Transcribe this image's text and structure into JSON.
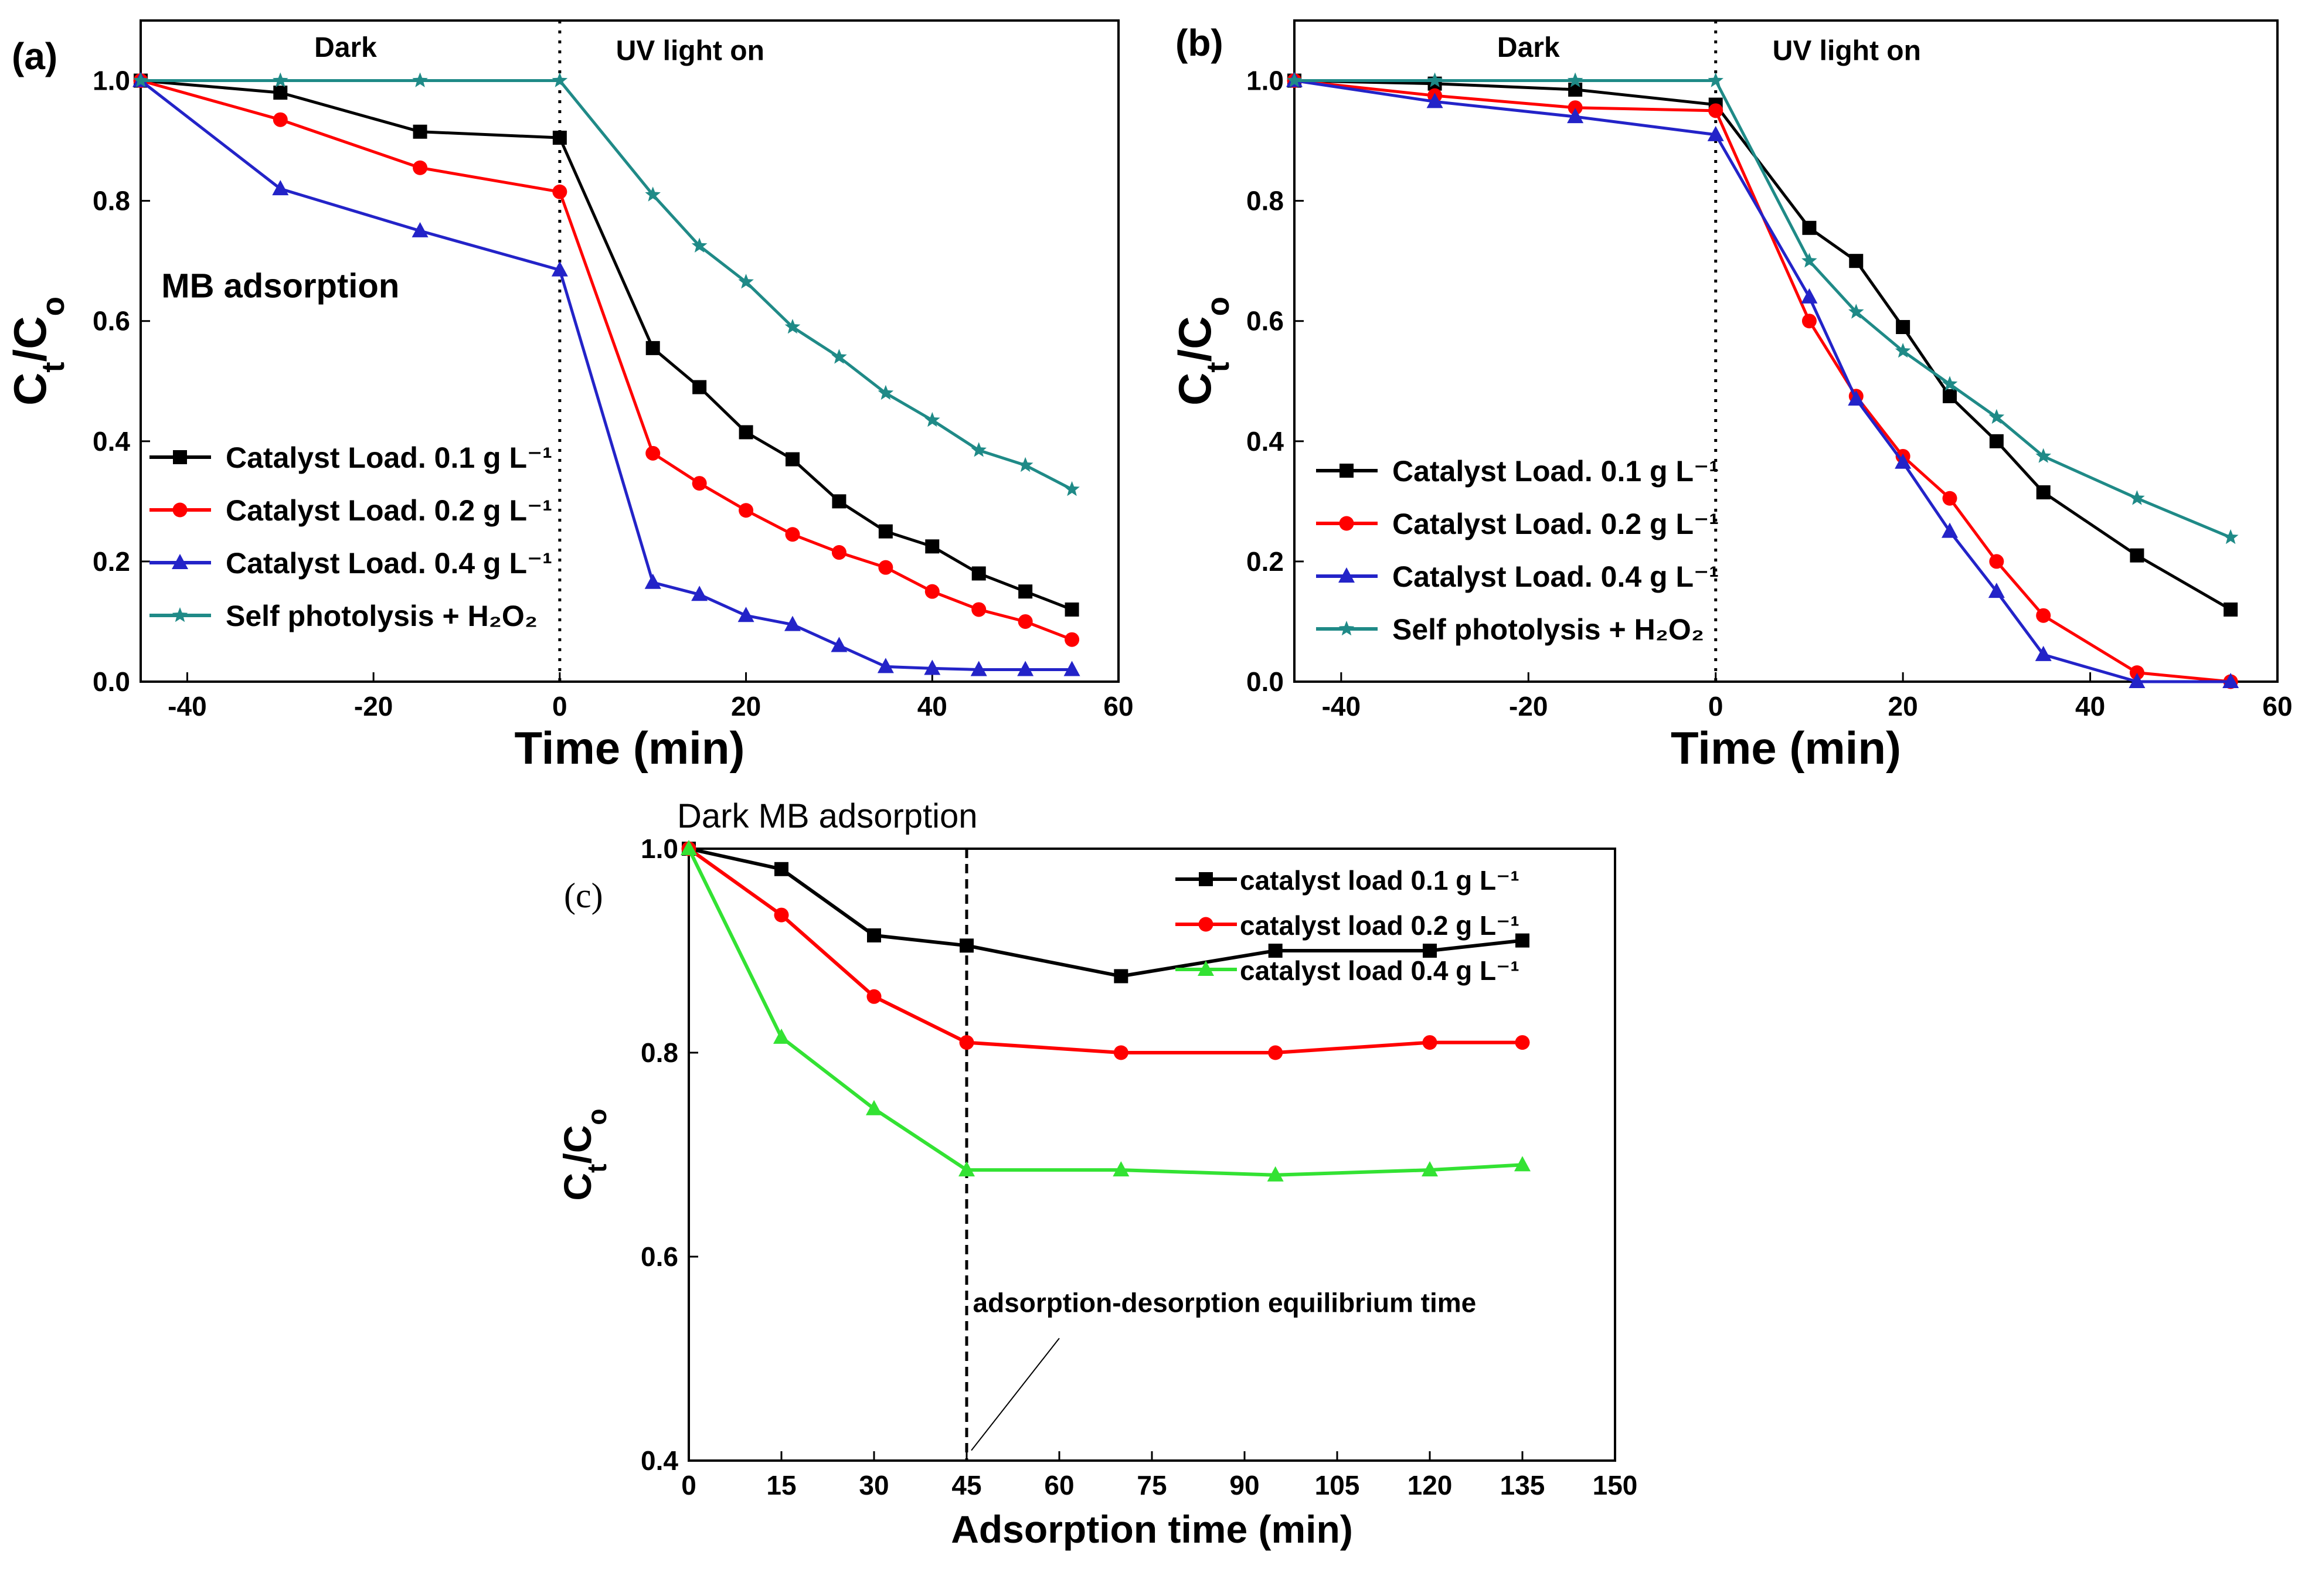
{
  "colors": {
    "black": "#000000",
    "red": "#ff0000",
    "blue": "#2323c8",
    "teal": "#1f8a87",
    "green": "#33e233"
  },
  "chart_data": [
    {
      "id": "a",
      "type": "line",
      "panel_label": "(a)",
      "xlabel": "Time (min)",
      "ylabel": "Ct/Co",
      "ylabel_main": "C",
      "ylabel_sub1": "t",
      "ylabel_mid": "/C",
      "ylabel_sub2": "o",
      "xlim": [
        -45,
        60
      ],
      "ylim": [
        0,
        1.1
      ],
      "xticks": [
        -40,
        -20,
        0,
        20,
        40,
        60
      ],
      "xtick_labels": [
        "-40",
        "-20",
        "0",
        "20",
        "40",
        "60"
      ],
      "yticks": [
        0,
        0.2,
        0.4,
        0.6,
        0.8,
        1.0
      ],
      "ytick_labels": [
        "0.0",
        "0.2",
        "0.4",
        "0.6",
        "0.8",
        "1.0"
      ],
      "divider_x": 0,
      "annotations": [
        {
          "text": "Dark",
          "x": -23,
          "y": 1.055
        },
        {
          "text": "UV light on",
          "x": 14,
          "y": 1.05
        },
        {
          "text": "MB adsorption",
          "x": -30,
          "y": 0.655
        }
      ],
      "legend_position": "lower-left",
      "series": [
        {
          "name": "Catalyst Load. 0.1 g L⁻¹",
          "color": "black",
          "marker": "square",
          "x": [
            -45,
            -30,
            -15,
            0,
            10,
            15,
            20,
            25,
            30,
            35,
            40,
            45,
            50,
            55
          ],
          "y": [
            1.0,
            0.98,
            0.915,
            0.905,
            0.555,
            0.49,
            0.415,
            0.37,
            0.3,
            0.25,
            0.225,
            0.18,
            0.15,
            0.12
          ]
        },
        {
          "name": "Catalyst Load. 0.2 g L⁻¹",
          "color": "red",
          "marker": "circle",
          "x": [
            -45,
            -30,
            -15,
            0,
            10,
            15,
            20,
            25,
            30,
            35,
            40,
            45,
            50,
            55
          ],
          "y": [
            1.0,
            0.935,
            0.855,
            0.815,
            0.38,
            0.33,
            0.285,
            0.245,
            0.215,
            0.19,
            0.15,
            0.12,
            0.1,
            0.07
          ]
        },
        {
          "name": "Catalyst Load. 0.4 g L⁻¹",
          "color": "blue",
          "marker": "triangle",
          "x": [
            -45,
            -30,
            -15,
            0,
            10,
            15,
            20,
            25,
            30,
            35,
            40,
            45,
            50,
            55
          ],
          "y": [
            1.0,
            0.82,
            0.75,
            0.685,
            0.165,
            0.145,
            0.11,
            0.095,
            0.06,
            0.025,
            0.022,
            0.02,
            0.02,
            0.02
          ]
        },
        {
          "name": "Self photolysis + H₂O₂",
          "color": "teal",
          "marker": "star",
          "x": [
            -45,
            -30,
            -15,
            0,
            10,
            15,
            20,
            25,
            30,
            35,
            40,
            45,
            50,
            55
          ],
          "y": [
            1.0,
            1.0,
            1.0,
            1.0,
            0.81,
            0.725,
            0.665,
            0.59,
            0.54,
            0.48,
            0.435,
            0.385,
            0.36,
            0.32
          ]
        }
      ]
    },
    {
      "id": "b",
      "type": "line",
      "panel_label": "(b)",
      "xlabel": "Time (min)",
      "ylabel": "Ct/Co",
      "ylabel_main": "C",
      "ylabel_sub1": "t",
      "ylabel_mid": "/C",
      "ylabel_sub2": "o",
      "xlim": [
        -45,
        60
      ],
      "ylim": [
        0,
        1.1
      ],
      "xticks": [
        -40,
        -20,
        0,
        20,
        40,
        60
      ],
      "xtick_labels": [
        "-40",
        "-20",
        "0",
        "20",
        "40",
        "60"
      ],
      "yticks": [
        0,
        0.2,
        0.4,
        0.6,
        0.8,
        1.0
      ],
      "ytick_labels": [
        "0.0",
        "0.2",
        "0.4",
        "0.6",
        "0.8",
        "1.0"
      ],
      "divider_x": 0,
      "annotations": [
        {
          "text": "Dark",
          "x": -20,
          "y": 1.055
        },
        {
          "text": "UV light on",
          "x": 14,
          "y": 1.05
        }
      ],
      "legend_position": "lower-left",
      "series": [
        {
          "name": "Catalyst Load. 0.1 g L⁻¹",
          "color": "black",
          "marker": "square",
          "x": [
            -45,
            -30,
            -15,
            0,
            10,
            15,
            20,
            25,
            30,
            35,
            45,
            55
          ],
          "y": [
            1.0,
            0.995,
            0.985,
            0.96,
            0.755,
            0.7,
            0.59,
            0.475,
            0.4,
            0.315,
            0.21,
            0.12
          ]
        },
        {
          "name": "Catalyst Load. 0.2 g L⁻¹",
          "color": "red",
          "marker": "circle",
          "x": [
            -45,
            -30,
            -15,
            0,
            10,
            15,
            20,
            25,
            30,
            35,
            45,
            55
          ],
          "y": [
            1.0,
            0.975,
            0.955,
            0.95,
            0.6,
            0.475,
            0.375,
            0.305,
            0.2,
            0.11,
            0.015,
            0.0
          ]
        },
        {
          "name": "Catalyst Load. 0.4 g L⁻¹",
          "color": "blue",
          "marker": "triangle",
          "x": [
            -45,
            -30,
            -15,
            0,
            10,
            15,
            20,
            25,
            30,
            35,
            45,
            55
          ],
          "y": [
            1.0,
            0.965,
            0.94,
            0.91,
            0.64,
            0.47,
            0.365,
            0.25,
            0.15,
            0.045,
            0.0,
            0.0
          ]
        },
        {
          "name": "Self photolysis + H₂O₂",
          "color": "teal",
          "marker": "star",
          "x": [
            -45,
            -30,
            -15,
            0,
            10,
            15,
            20,
            25,
            30,
            35,
            45,
            55
          ],
          "y": [
            1.0,
            1.0,
            1.0,
            1.0,
            0.7,
            0.615,
            0.55,
            0.495,
            0.44,
            0.375,
            0.305,
            0.24
          ]
        }
      ]
    },
    {
      "id": "c",
      "type": "line",
      "panel_label": "(c)",
      "xlabel": "Adsorption time (min)",
      "ylabel": "Ct/Co",
      "ylabel_main": "C",
      "ylabel_sub1": "t",
      "ylabel_mid": "/C",
      "ylabel_sub2": "o",
      "xlim": [
        0,
        150
      ],
      "ylim": [
        0.4,
        1.0
      ],
      "xticks": [
        0,
        15,
        30,
        45,
        60,
        75,
        90,
        105,
        120,
        135,
        150
      ],
      "xtick_labels": [
        "0",
        "15",
        "30",
        "45",
        "60",
        "75",
        "90",
        "105",
        "120",
        "135",
        "150"
      ],
      "yticks": [
        0.4,
        0.6,
        0.8,
        1.0
      ],
      "ytick_labels": [
        "0.4",
        "0.6",
        "0.8",
        "1.0"
      ],
      "divider_x": 45,
      "annotations": [
        {
          "text": "Dark MB adsorption",
          "x": 0,
          "y": 1.03
        },
        {
          "text": "adsorption-desorption equilibrium time",
          "x": 46,
          "y": 0.555
        }
      ],
      "legend_position": "top-right",
      "series": [
        {
          "name": "catalyst load 0.1 g L⁻¹",
          "color": "black",
          "marker": "square",
          "x": [
            0,
            15,
            30,
            45,
            70,
            95,
            120,
            135
          ],
          "y": [
            1.0,
            0.98,
            0.915,
            0.905,
            0.875,
            0.9,
            0.9,
            0.91
          ]
        },
        {
          "name": "catalyst load 0.2 g L⁻¹",
          "color": "red",
          "marker": "circle",
          "x": [
            0,
            15,
            30,
            45,
            70,
            95,
            120,
            135
          ],
          "y": [
            1.0,
            0.935,
            0.855,
            0.81,
            0.8,
            0.8,
            0.81,
            0.81
          ]
        },
        {
          "name": "catalyst load 0.4 g L⁻¹",
          "color": "green",
          "marker": "triangle",
          "x": [
            0,
            15,
            30,
            45,
            70,
            95,
            120,
            135
          ],
          "y": [
            1.0,
            0.815,
            0.745,
            0.685,
            0.685,
            0.68,
            0.685,
            0.69
          ]
        }
      ]
    }
  ]
}
